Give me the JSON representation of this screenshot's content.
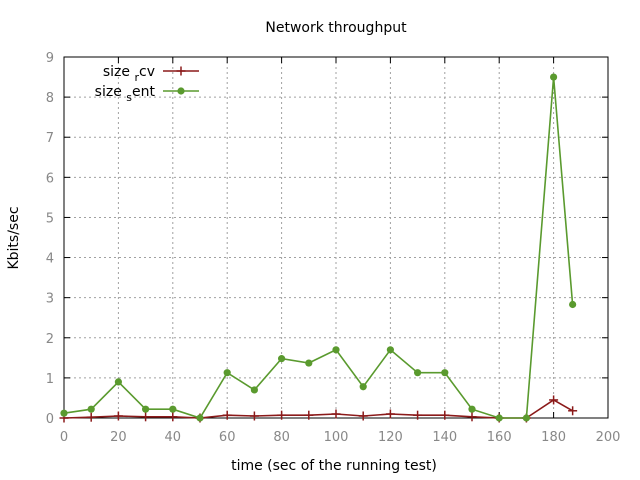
{
  "chart_data": {
    "type": "line",
    "title": "Network throughput",
    "xlabel": "time (sec of the running test)",
    "ylabel": "Kbits/sec",
    "xlim": [
      0,
      200
    ],
    "ylim": [
      0,
      9
    ],
    "xticks": [
      0,
      20,
      40,
      60,
      80,
      100,
      120,
      140,
      160,
      180,
      200
    ],
    "yticks": [
      0,
      1,
      2,
      3,
      4,
      5,
      6,
      7,
      8,
      9
    ],
    "grid": true,
    "legend_position": "top-left",
    "series": [
      {
        "name_base": "size",
        "name_sub": "r",
        "name_tail": "cv",
        "color": "#8b1a1a",
        "marker": "plus",
        "x": [
          0,
          10,
          20,
          30,
          40,
          50,
          60,
          70,
          80,
          90,
          100,
          110,
          120,
          130,
          140,
          150,
          160,
          170,
          180,
          187
        ],
        "y": [
          0.0,
          0.02,
          0.05,
          0.03,
          0.03,
          0.0,
          0.07,
          0.05,
          0.07,
          0.07,
          0.1,
          0.05,
          0.1,
          0.07,
          0.07,
          0.03,
          0.0,
          0.0,
          0.45,
          0.18
        ]
      },
      {
        "name_base": "size",
        "name_sub": "s",
        "name_tail": "ent",
        "color": "#5a9a2e",
        "marker": "filled-circle",
        "x": [
          0,
          10,
          20,
          30,
          40,
          50,
          60,
          70,
          80,
          90,
          100,
          110,
          120,
          130,
          140,
          150,
          160,
          170,
          180,
          187
        ],
        "y": [
          0.12,
          0.22,
          0.9,
          0.22,
          0.22,
          0.0,
          1.13,
          0.7,
          1.48,
          1.37,
          1.7,
          0.78,
          1.7,
          1.13,
          1.13,
          0.22,
          0.0,
          0.0,
          8.5,
          2.83
        ]
      }
    ]
  }
}
